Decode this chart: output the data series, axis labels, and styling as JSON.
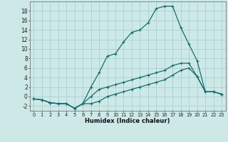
{
  "xlabel": "Humidex (Indice chaleur)",
  "background_color": "#cce9e8",
  "grid_color": "#aacfcf",
  "line_color": "#1a6b6b",
  "series1": {
    "x": [
      0,
      1,
      2,
      3,
      4,
      5,
      6,
      7,
      8,
      9,
      10,
      11,
      12,
      13,
      14,
      15,
      16,
      17,
      18,
      19,
      20,
      21,
      22,
      23
    ],
    "y": [
      -0.5,
      -0.7,
      -1.3,
      -1.5,
      -1.5,
      -2.5,
      -1.5,
      -1.5,
      -1.0,
      0,
      0.5,
      1.0,
      1.5,
      2.0,
      2.5,
      3.0,
      3.5,
      4.5,
      5.5,
      6.0,
      4.2,
      1.0,
      1.0,
      0.5
    ]
  },
  "series2": {
    "x": [
      0,
      1,
      2,
      3,
      4,
      5,
      6,
      7,
      8,
      9,
      10,
      11,
      12,
      13,
      14,
      15,
      16,
      17,
      18,
      19,
      20,
      21,
      22,
      23
    ],
    "y": [
      -0.5,
      -0.7,
      -1.3,
      -1.5,
      -1.5,
      -2.5,
      -1.5,
      2.0,
      5.0,
      8.5,
      9.0,
      11.5,
      13.5,
      14.0,
      15.5,
      18.5,
      19.0,
      19.0,
      14.5,
      11.0,
      7.5,
      1.0,
      1.0,
      0.5
    ]
  },
  "series3": {
    "x": [
      0,
      1,
      2,
      3,
      4,
      5,
      6,
      7,
      8,
      9,
      10,
      11,
      12,
      13,
      14,
      15,
      16,
      17,
      18,
      19,
      20,
      21,
      22,
      23
    ],
    "y": [
      -0.5,
      -0.7,
      -1.3,
      -1.5,
      -1.5,
      -2.5,
      -1.5,
      0.0,
      1.5,
      2.0,
      2.5,
      3.0,
      3.5,
      4.0,
      4.5,
      5.0,
      5.5,
      6.5,
      7.0,
      7.0,
      4.2,
      1.0,
      1.0,
      0.5
    ]
  },
  "ylim": [
    -3,
    20
  ],
  "xlim": [
    -0.5,
    23.5
  ],
  "yticks": [
    -2,
    0,
    2,
    4,
    6,
    8,
    10,
    12,
    14,
    16,
    18
  ],
  "xticks": [
    0,
    1,
    2,
    3,
    4,
    5,
    6,
    7,
    8,
    9,
    10,
    11,
    12,
    13,
    14,
    15,
    16,
    17,
    18,
    19,
    20,
    21,
    22,
    23
  ],
  "xlabel_fontsize": 6.0,
  "ytick_fontsize": 5.5,
  "xtick_fontsize": 4.8,
  "linewidth": 0.9,
  "markersize": 3.0
}
